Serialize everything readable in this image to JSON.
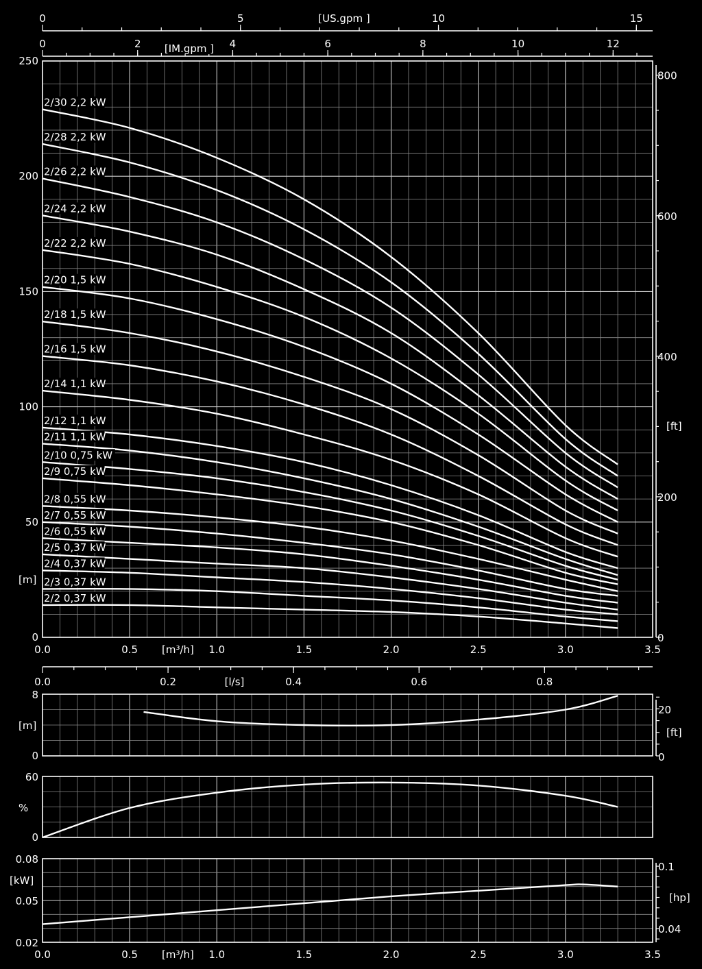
{
  "chart_data": [
    {
      "type": "line",
      "panel": "head",
      "xlabel": "[m³/h]",
      "ylabel": "[m]",
      "y2label": "[ft]",
      "xlim": [
        0,
        3.5
      ],
      "ylim": [
        0,
        250
      ],
      "x_ticks": [
        "0.0",
        "0.5",
        "1.0",
        "1.5",
        "2.0",
        "2.5",
        "3.0",
        "3.5"
      ],
      "y_ticks": [
        "0",
        "50",
        "100",
        "150",
        "200",
        "250"
      ],
      "y2_ticks": [
        "0",
        "200",
        "400",
        "600",
        "800"
      ],
      "y2_tick_values": [
        0,
        200,
        400,
        600,
        800
      ],
      "top_axis_us": {
        "label": "[US.gpm ]",
        "ticks": [
          "0",
          "5",
          "10",
          "15"
        ],
        "tick_values": [
          0,
          5,
          10,
          15
        ]
      },
      "top_axis_im": {
        "label": "[IM.gpm ]",
        "ticks": [
          "0",
          "2",
          "4",
          "6",
          "8",
          "10",
          "12"
        ],
        "tick_values": [
          0,
          2,
          4,
          6,
          8,
          10,
          12
        ]
      },
      "x": [
        0.0,
        0.5,
        1.0,
        1.5,
        2.0,
        2.5,
        3.0,
        3.3
      ],
      "series": [
        {
          "name": "2/30 2,2 kW",
          "values": [
            229,
            221,
            208,
            190,
            165,
            132,
            92,
            75
          ]
        },
        {
          "name": "2/28 2,2 kW",
          "values": [
            214,
            206,
            194,
            177,
            154,
            123,
            86,
            70
          ]
        },
        {
          "name": "2/26 2,2 kW",
          "values": [
            199,
            191,
            180,
            164,
            143,
            114,
            80,
            65
          ]
        },
        {
          "name": "2/24 2,2 kW",
          "values": [
            183,
            176,
            166,
            151,
            132,
            105,
            74,
            60
          ]
        },
        {
          "name": "2/22 2,2 kW",
          "values": [
            168,
            162,
            152,
            139,
            121,
            97,
            68,
            55
          ]
        },
        {
          "name": "2/20 1,5 kW",
          "values": [
            152,
            147,
            138,
            126,
            110,
            88,
            62,
            50
          ]
        },
        {
          "name": "2/18 1,5 kW",
          "values": [
            137,
            132,
            124,
            113,
            99,
            79,
            55,
            45
          ]
        },
        {
          "name": "2/16 1,5 kW",
          "values": [
            122,
            118,
            111,
            101,
            88,
            70,
            49,
            40
          ]
        },
        {
          "name": "2/14 1,1 kW",
          "values": [
            107,
            103,
            97,
            88,
            77,
            62,
            43,
            35
          ]
        },
        {
          "name": "2/12 1,1 kW",
          "values": [
            91,
            88,
            83,
            76,
            66,
            53,
            37,
            30
          ]
        },
        {
          "name": "2/11 1,1 kW",
          "values": [
            84,
            81,
            76,
            69,
            60,
            48,
            34,
            27
          ]
        },
        {
          "name": "2/10 0,75  kW",
          "values": [
            76,
            73,
            69,
            63,
            55,
            44,
            31,
            25
          ]
        },
        {
          "name": "2/9 0,75 kW",
          "values": [
            69,
            66,
            62,
            57,
            50,
            40,
            28,
            23
          ]
        },
        {
          "name": "2/8 0,55 kW",
          "values": [
            57,
            55,
            52,
            48,
            42,
            34,
            25,
            20
          ]
        },
        {
          "name": "2/7 0,55 kW",
          "values": [
            50,
            48,
            45,
            41,
            36,
            29,
            21,
            18
          ]
        },
        {
          "name": "2/6 0,55 kW",
          "values": [
            43,
            41,
            39,
            36,
            31,
            25,
            18,
            15
          ]
        },
        {
          "name": "2/5 0,37 kW",
          "values": [
            36,
            34,
            32,
            30,
            26,
            21,
            15,
            12
          ]
        },
        {
          "name": "2/4 0,37 kW",
          "values": [
            29,
            28,
            26,
            24,
            21,
            17,
            12,
            10
          ]
        },
        {
          "name": "2/3 0,37 kW",
          "values": [
            21,
            21,
            20,
            18,
            16,
            13,
            9,
            7
          ]
        },
        {
          "name": "2/2 0,37 kW",
          "values": [
            14,
            14,
            13,
            12,
            11,
            9,
            6,
            4
          ]
        }
      ]
    },
    {
      "type": "line",
      "panel": "npsh",
      "ylabel": "[m]",
      "y2label": "[ft]",
      "xlim": [
        0,
        3.5
      ],
      "ylim": [
        0,
        8
      ],
      "y_ticks": [
        "0",
        "4",
        "8"
      ],
      "y2_ticks": [
        "0",
        "[ft]",
        "20"
      ],
      "x_secondary": {
        "label": "[l/s]",
        "ticks": [
          "0.0",
          "0.2",
          "0.4",
          "0.6",
          "0.8"
        ],
        "tick_values": [
          0,
          0.2,
          0.4,
          0.6,
          0.8
        ]
      },
      "x": [
        0.58,
        1.0,
        1.5,
        2.0,
        2.5,
        3.0,
        3.3
      ],
      "values": [
        5.7,
        4.5,
        4.0,
        4.0,
        4.7,
        6.0,
        7.8
      ]
    },
    {
      "type": "line",
      "panel": "efficiency",
      "ylabel": "%",
      "xlim": [
        0,
        3.5
      ],
      "ylim": [
        0,
        60
      ],
      "y_ticks": [
        "0",
        "60"
      ],
      "x": [
        0.0,
        0.5,
        1.0,
        1.5,
        2.0,
        2.5,
        3.0,
        3.3
      ],
      "values": [
        0,
        29,
        44,
        52,
        54,
        51,
        41,
        30
      ]
    },
    {
      "type": "line",
      "panel": "power",
      "xlabel": "[m³/h]",
      "ylabel": "[kW]",
      "y2label": "[hp]",
      "xlim": [
        0,
        3.5
      ],
      "ylim": [
        0.02,
        0.08
      ],
      "x_ticks": [
        "0.0",
        "0.5",
        "1.0",
        "1.5",
        "2.0",
        "2.5",
        "3.0",
        "3.5"
      ],
      "y_ticks": [
        "0.02",
        "0.05",
        "0.08"
      ],
      "y2_ticks": [
        "0.04",
        "0.1"
      ],
      "y2_tick_values": [
        0.04,
        0.1
      ],
      "x": [
        0.0,
        0.5,
        1.0,
        1.5,
        2.0,
        2.5,
        3.0,
        3.1,
        3.3
      ],
      "values": [
        0.033,
        0.038,
        0.043,
        0.048,
        0.053,
        0.057,
        0.061,
        0.0615,
        0.06
      ]
    }
  ]
}
